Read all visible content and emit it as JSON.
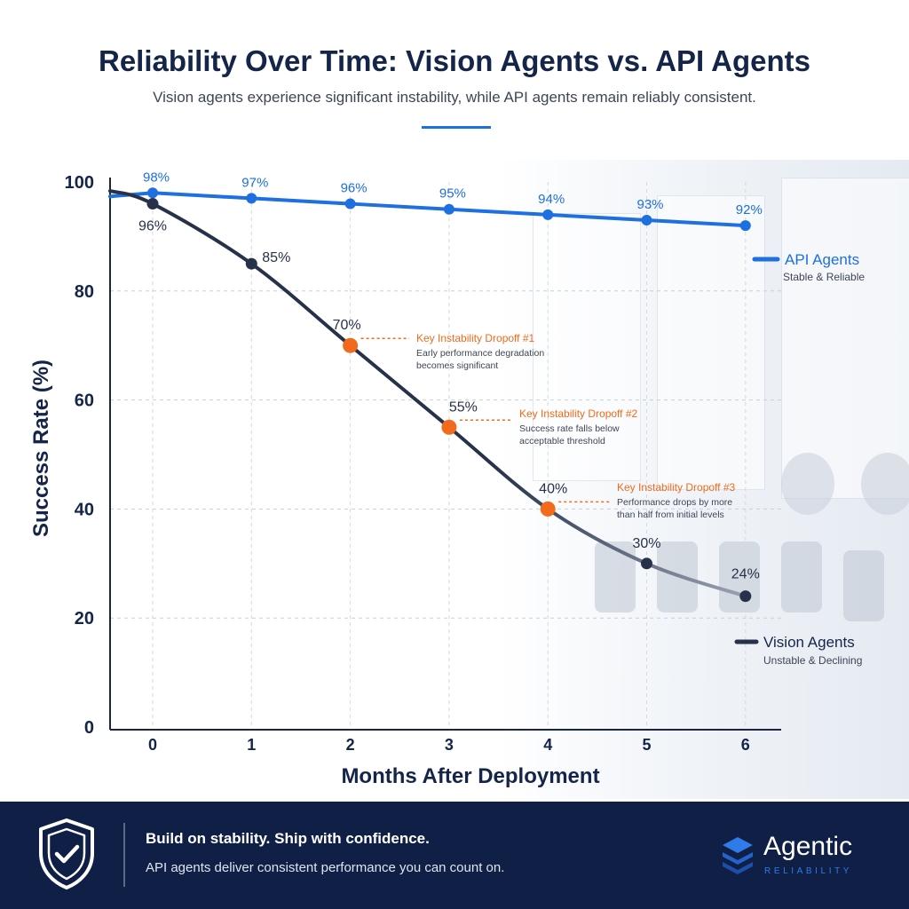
{
  "header": {
    "title": "Reliability Over Time: Vision Agents vs. API Agents",
    "subtitle": "Vision agents experience significant instability, while API agents remain reliably consistent."
  },
  "colors": {
    "api": "#1e6fe0",
    "vision": "#27324a",
    "dropoff": "#f26a1b",
    "navy": "#0f1f45"
  },
  "legend": {
    "api": {
      "label": "API Agents",
      "sub": "Stable & Reliable"
    },
    "vision": {
      "label": "Vision Agents",
      "sub": "Unstable & Declining"
    }
  },
  "annotations": [
    {
      "title": "Key Instability Dropoff #1",
      "line1": "Early performance degradation",
      "line2": "becomes significant"
    },
    {
      "title": "Key Instability Dropoff #2",
      "line1": "Success rate falls below",
      "line2": "acceptable threshold"
    },
    {
      "title": "Key Instability Dropoff #3",
      "line1": "Performance drops by more",
      "line2": "than half from initial levels"
    }
  ],
  "chart_data": {
    "type": "line",
    "x": [
      0,
      1,
      2,
      3,
      4,
      5,
      6
    ],
    "xlabel": "Months After Deployment",
    "ylabel": "Success Rate (%)",
    "ylim": [
      0,
      100
    ],
    "yticks": [
      0,
      20,
      40,
      60,
      80,
      100
    ],
    "grid": true,
    "legend_position": "right",
    "series": [
      {
        "name": "API Agents",
        "x": [
          0,
          1,
          2,
          3,
          4,
          5,
          6
        ],
        "values": [
          98,
          97,
          96,
          95,
          94,
          93,
          92
        ],
        "labels": [
          "98%",
          "97%",
          "96%",
          "95%",
          "94%",
          "93%",
          "92%"
        ]
      },
      {
        "name": "Vision Agents",
        "x": [
          0,
          1,
          2,
          3,
          4,
          5,
          6
        ],
        "values": [
          96,
          85,
          70,
          55,
          40,
          30,
          24
        ],
        "labels": [
          "96%",
          "85%",
          "70%",
          "55%",
          "40%",
          "30%",
          "24%"
        ],
        "highlighted": [
          2,
          3,
          4
        ]
      }
    ]
  },
  "footer": {
    "headline": "Build on stability. Ship with confidence.",
    "tagline": "API agents deliver consistent performance you can count on.",
    "brand": "Agentic",
    "brand_sub": "RELIABILITY",
    "icons": [
      "shield-check-icon",
      "stacked-layers-icon"
    ]
  }
}
